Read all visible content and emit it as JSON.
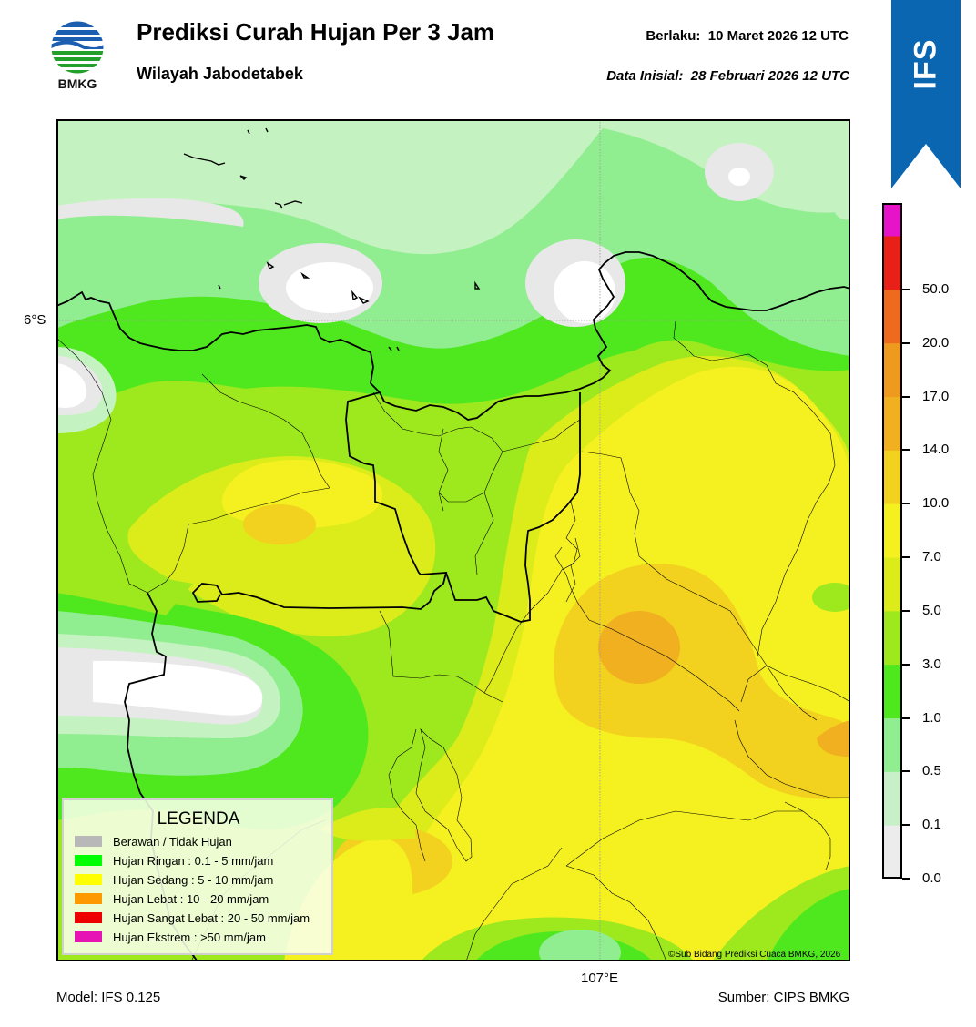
{
  "header": {
    "logo_text": "BMKG",
    "title": "Prediksi Curah Hujan Per 3 Jam",
    "subtitle": "Wilayah Jabodetabek",
    "valid_label": "Berlaku:",
    "valid_value": "10 Maret 2026 12 UTC",
    "init_label": "Data Inisial:",
    "init_value": "28 Februari 2026 12 UTC",
    "badge": "IFS"
  },
  "map": {
    "lat_label": "6°S",
    "lon_label": "107°E",
    "credit": "©Sub Bidang Prediksi Cuaca BMKG, 2026"
  },
  "legend": {
    "title": "LEGENDA",
    "items": [
      {
        "label": "Berawan / Tidak Hujan",
        "color": "#b8b8b8"
      },
      {
        "label": "Hujan Ringan : 0.1 - 5 mm/jam",
        "color": "#00ff00"
      },
      {
        "label": "Hujan Sedang : 5 - 10 mm/jam",
        "color": "#ffff00"
      },
      {
        "label": "Hujan Lebat : 10 - 20 mm/jam",
        "color": "#ff9900"
      },
      {
        "label": "Hujan Sangat Lebat : 20 - 50 mm/jam",
        "color": "#ee0000"
      },
      {
        "label": "Hujan Ekstrem : >50 mm/jam",
        "color": "#e614b4"
      }
    ]
  },
  "colorbar": {
    "ticks": [
      "0.0",
      "0.1",
      "0.5",
      "1.0",
      "3.0",
      "5.0",
      "7.0",
      "10.0",
      "14.0",
      "17.0",
      "20.0",
      "50.0"
    ],
    "colors": [
      "#ececec",
      "#c8f0c8",
      "#90ee90",
      "#4fe81e",
      "#9ee81e",
      "#dcec1a",
      "#f5f020",
      "#f2d21e",
      "#f0b020",
      "#ee9a1e",
      "#ee6a1e",
      "#e82018",
      "#e614c8"
    ]
  },
  "footer": {
    "model": "Model: IFS 0.125",
    "source": "Sumber: CIPS BMKG"
  }
}
